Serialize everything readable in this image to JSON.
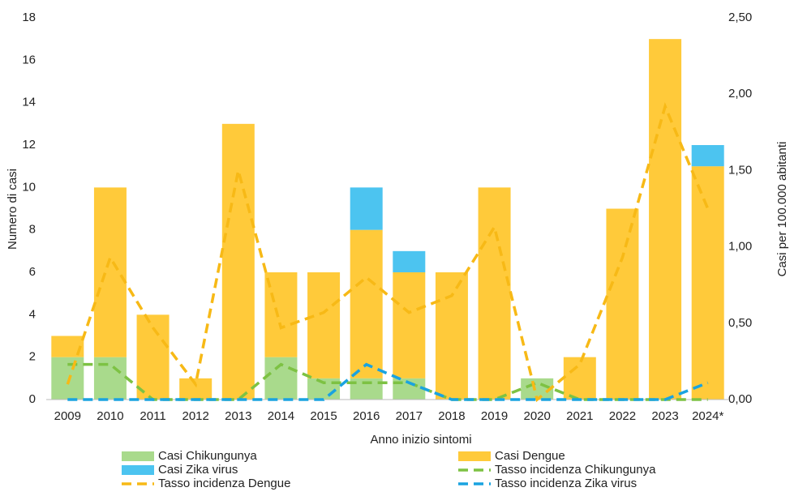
{
  "chart_data": {
    "type": "bar",
    "x_label": "Anno inizio sintomi",
    "y_label": "Numero di casi",
    "y2_label": "Casi per 100.000 abitanti",
    "categories": [
      "2009",
      "2010",
      "2011",
      "2012",
      "2013",
      "2014",
      "2015",
      "2016",
      "2017",
      "2018",
      "2019",
      "2020",
      "2021",
      "2022",
      "2023",
      "2024*"
    ],
    "ylim": [
      0,
      18
    ],
    "yticks": [
      0,
      2,
      4,
      6,
      8,
      10,
      12,
      14,
      16,
      18
    ],
    "y2lim": [
      0,
      2.5
    ],
    "y2ticks": [
      {
        "value": 0,
        "label": "0,00"
      },
      {
        "value": 0.5,
        "label": "0,50"
      },
      {
        "value": 1,
        "label": "1,00"
      },
      {
        "value": 1.5,
        "label": "1,50"
      },
      {
        "value": 2,
        "label": "2,00"
      },
      {
        "value": 2.5,
        "label": "2,50"
      }
    ],
    "stacked": true,
    "series": [
      {
        "name": "Casi Chikungunya",
        "type": "bar",
        "color": "#a9da8c",
        "values": [
          2,
          2,
          0,
          0,
          0,
          2,
          1,
          1,
          1,
          0,
          0,
          1,
          0,
          0,
          0,
          0
        ]
      },
      {
        "name": "Casi Dengue",
        "type": "bar",
        "color": "#ffca3a",
        "values": [
          1,
          8,
          4,
          1,
          13,
          4,
          5,
          7,
          5,
          6,
          10,
          0,
          2,
          9,
          17,
          11
        ]
      },
      {
        "name": "Casi Zika virus",
        "type": "bar",
        "color": "#4cc4f0",
        "values": [
          0,
          0,
          0,
          0,
          0,
          0,
          0,
          2,
          1,
          0,
          0,
          0,
          0,
          0,
          0,
          1
        ]
      },
      {
        "name": "Tasso incidenza Chikungunya",
        "type": "line",
        "axis": "y2",
        "color": "#7dc243",
        "values": [
          0.23,
          0.23,
          0,
          0,
          0,
          0.23,
          0.11,
          0.11,
          0.11,
          0,
          0,
          0.11,
          0,
          0,
          0,
          0
        ]
      },
      {
        "name": "Tasso incidenza Dengue",
        "type": "line",
        "axis": "y2",
        "color": "#f7b916",
        "values": [
          0.1,
          0.93,
          0.47,
          0.1,
          1.5,
          0.47,
          0.57,
          0.8,
          0.57,
          0.68,
          1.13,
          0,
          0.23,
          0.93,
          1.92,
          1.25
        ]
      },
      {
        "name": "Tasso incidenza Zika virus",
        "type": "line",
        "axis": "y2",
        "color": "#1aa3e0",
        "values": [
          0,
          0,
          0,
          0,
          0,
          0,
          0,
          0.23,
          0.11,
          0,
          0,
          0,
          0,
          0,
          0,
          0.11
        ]
      }
    ]
  }
}
